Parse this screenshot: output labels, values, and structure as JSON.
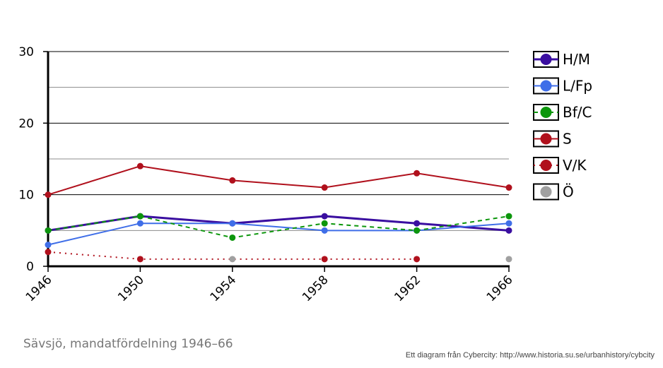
{
  "caption": "Sävsjö, mandatfördelning 1946–66",
  "credit": "Ett diagram från Cybercity: http://www.historia.su.se/urbanhistory/cybcity",
  "chart_data": {
    "type": "line",
    "title": "",
    "xlabel": "",
    "ylabel": "",
    "x": [
      1946,
      1950,
      1954,
      1958,
      1962,
      1966
    ],
    "ylim": [
      0,
      30
    ],
    "y_ticks": [
      0,
      10,
      20,
      30
    ],
    "y_minor_ticks": [
      5,
      15,
      25
    ],
    "grid": true,
    "legend": "right",
    "series": [
      {
        "name": "H/M",
        "values": [
          5,
          7,
          6,
          7,
          6,
          5
        ],
        "color": "#3a0ea0",
        "style": "solid",
        "width": 3
      },
      {
        "name": "L/Fp",
        "values": [
          3,
          6,
          6,
          5,
          5,
          6
        ],
        "color": "#3f6ee8",
        "style": "solid",
        "width": 2
      },
      {
        "name": "Bf/C",
        "values": [
          5,
          7,
          4,
          6,
          5,
          7
        ],
        "color": "#0c960c",
        "style": "dashed",
        "width": 2
      },
      {
        "name": "S",
        "values": [
          10,
          14,
          12,
          11,
          13,
          11
        ],
        "color": "#b0101c",
        "style": "solid",
        "width": 2
      },
      {
        "name": "V/K",
        "values": [
          2,
          1,
          null,
          1,
          1,
          null
        ],
        "color": "#b0101c",
        "style": "dotted",
        "width": 2
      },
      {
        "name": "Ö",
        "values": [
          null,
          null,
          1,
          null,
          null,
          1
        ],
        "color": "#a0a0a0",
        "style": "none",
        "width": 2
      }
    ]
  }
}
